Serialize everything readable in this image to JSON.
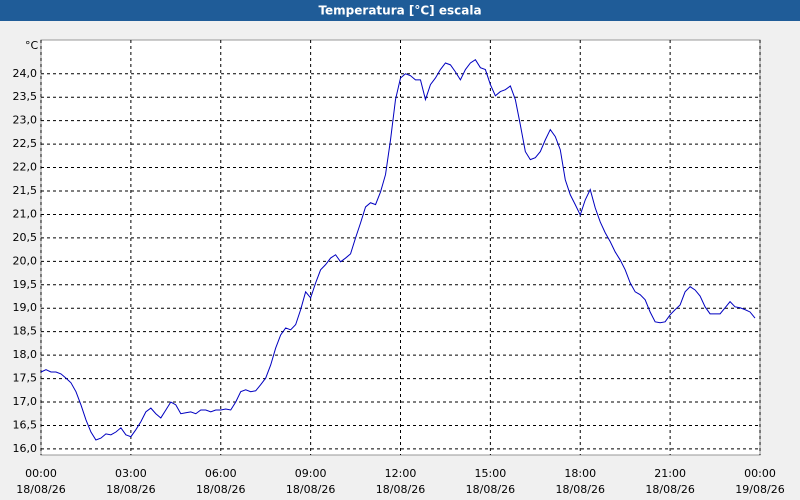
{
  "chart_data": {
    "type": "line",
    "title": "Temperatura [°C] escala",
    "y_label": "°C",
    "color": "#0000c0",
    "grid": true,
    "xlim": [
      0,
      24
    ],
    "ylim": [
      15.87,
      24.72
    ],
    "xticks": [
      {
        "value": 0,
        "label": "00:00",
        "date": "18/08/26"
      },
      {
        "value": 3,
        "label": "03:00",
        "date": "18/08/26"
      },
      {
        "value": 6,
        "label": "06:00",
        "date": "18/08/26"
      },
      {
        "value": 9,
        "label": "09:00",
        "date": "18/08/26"
      },
      {
        "value": 12,
        "label": "12:00",
        "date": "18/08/26"
      },
      {
        "value": 15,
        "label": "15:00",
        "date": "18/08/26"
      },
      {
        "value": 18,
        "label": "18:00",
        "date": "18/08/26"
      },
      {
        "value": 21,
        "label": "21:00",
        "date": "18/08/26"
      },
      {
        "value": 24,
        "label": "00:00",
        "date": "19/08/26"
      }
    ],
    "yticks": [
      {
        "value": 16,
        "label": "16,0"
      },
      {
        "value": 16.5,
        "label": "16,5"
      },
      {
        "value": 17,
        "label": "17,0"
      },
      {
        "value": 17.5,
        "label": "17,5"
      },
      {
        "value": 18,
        "label": "18,0"
      },
      {
        "value": 18.5,
        "label": "18,5"
      },
      {
        "value": 19,
        "label": "19,0"
      },
      {
        "value": 19.5,
        "label": "19,5"
      },
      {
        "value": 20,
        "label": "20,0"
      },
      {
        "value": 20.5,
        "label": "20,5"
      },
      {
        "value": 21,
        "label": "21,0"
      },
      {
        "value": 21.5,
        "label": "21,5"
      },
      {
        "value": 22,
        "label": "22,0"
      },
      {
        "value": 22.5,
        "label": "22,5"
      },
      {
        "value": 23,
        "label": "23,0"
      },
      {
        "value": 23.5,
        "label": "23,5"
      },
      {
        "value": 24,
        "label": "24,0"
      }
    ],
    "x": [
      0,
      0.167,
      0.333,
      0.5,
      0.667,
      0.833,
      1,
      1.167,
      1.333,
      1.5,
      1.667,
      1.833,
      2,
      2.167,
      2.333,
      2.5,
      2.667,
      2.833,
      3,
      3.167,
      3.333,
      3.5,
      3.667,
      3.833,
      4,
      4.167,
      4.333,
      4.5,
      4.667,
      4.833,
      5,
      5.167,
      5.333,
      5.5,
      5.667,
      5.833,
      6,
      6.167,
      6.333,
      6.5,
      6.667,
      6.833,
      7,
      7.167,
      7.333,
      7.5,
      7.667,
      7.833,
      8,
      8.167,
      8.333,
      8.5,
      8.667,
      8.833,
      9,
      9.167,
      9.333,
      9.5,
      9.667,
      9.833,
      10,
      10.167,
      10.333,
      10.5,
      10.667,
      10.833,
      11,
      11.167,
      11.333,
      11.5,
      11.667,
      11.833,
      12,
      12.167,
      12.333,
      12.5,
      12.667,
      12.833,
      13,
      13.167,
      13.333,
      13.5,
      13.667,
      13.833,
      14,
      14.167,
      14.333,
      14.5,
      14.667,
      14.833,
      15,
      15.167,
      15.333,
      15.5,
      15.667,
      15.833,
      16,
      16.167,
      16.333,
      16.5,
      16.667,
      16.833,
      17,
      17.167,
      17.333,
      17.5,
      17.667,
      17.833,
      18,
      18.167,
      18.333,
      18.5,
      18.667,
      18.833,
      19,
      19.167,
      19.333,
      19.5,
      19.667,
      19.833,
      20,
      20.167,
      20.333,
      20.5,
      20.667,
      20.833,
      21,
      21.167,
      21.333,
      21.5,
      21.667,
      21.833,
      22,
      22.167,
      22.333,
      22.5,
      22.667,
      22.833,
      23,
      23.167,
      23.333,
      23.5,
      23.667,
      23.833
    ],
    "values": [
      17.64,
      17.69,
      17.64,
      17.64,
      17.6,
      17.51,
      17.41,
      17.22,
      16.94,
      16.62,
      16.36,
      16.19,
      16.23,
      16.32,
      16.3,
      16.36,
      16.45,
      16.3,
      16.26,
      16.41,
      16.58,
      16.79,
      16.87,
      16.75,
      16.66,
      16.83,
      17.0,
      16.94,
      16.75,
      16.77,
      16.79,
      16.75,
      16.83,
      16.83,
      16.79,
      16.83,
      16.83,
      16.85,
      16.83,
      17.0,
      17.22,
      17.26,
      17.22,
      17.24,
      17.37,
      17.51,
      17.79,
      18.15,
      18.43,
      18.58,
      18.54,
      18.65,
      18.97,
      19.35,
      19.22,
      19.54,
      19.82,
      19.93,
      20.07,
      20.14,
      19.99,
      20.07,
      20.16,
      20.5,
      20.82,
      21.16,
      21.25,
      21.21,
      21.48,
      21.85,
      22.59,
      23.45,
      23.91,
      24.0,
      23.96,
      23.87,
      23.87,
      23.45,
      23.77,
      23.91,
      24.09,
      24.23,
      24.19,
      24.04,
      23.87,
      24.09,
      24.23,
      24.3,
      24.13,
      24.09,
      23.77,
      23.53,
      23.62,
      23.66,
      23.74,
      23.45,
      22.91,
      22.34,
      22.17,
      22.21,
      22.34,
      22.59,
      22.81,
      22.66,
      22.38,
      21.74,
      21.42,
      21.21,
      20.99,
      21.31,
      21.53,
      21.14,
      20.84,
      20.61,
      20.42,
      20.2,
      20.03,
      19.82,
      19.54,
      19.35,
      19.29,
      19.18,
      18.92,
      18.71,
      18.69,
      18.71,
      18.86,
      18.97,
      19.07,
      19.35,
      19.46,
      19.39,
      19.26,
      19.03,
      18.88,
      18.88,
      18.88,
      19.01,
      19.14,
      19.03,
      19.01,
      18.97,
      18.92,
      18.79
    ]
  }
}
